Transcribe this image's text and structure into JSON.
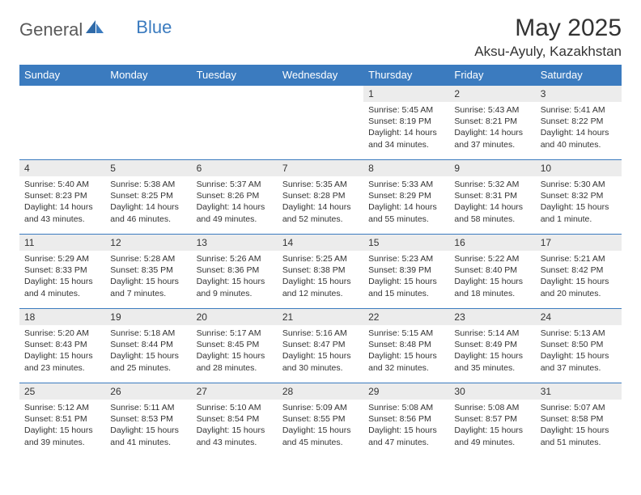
{
  "brand": {
    "general": "General",
    "blue": "Blue"
  },
  "header": {
    "month_title": "May 2025",
    "location": "Aksu-Ayuly, Kazakhstan"
  },
  "colors": {
    "accent": "#3b7bbf",
    "daynum_bg": "#ececec",
    "text": "#333333",
    "background": "#ffffff"
  },
  "daynames": [
    "Sunday",
    "Monday",
    "Tuesday",
    "Wednesday",
    "Thursday",
    "Friday",
    "Saturday"
  ],
  "weeks": [
    [
      null,
      null,
      null,
      null,
      {
        "n": "1",
        "sr": "Sunrise: 5:45 AM",
        "ss": "Sunset: 8:19 PM",
        "d1": "Daylight: 14 hours",
        "d2": "and 34 minutes."
      },
      {
        "n": "2",
        "sr": "Sunrise: 5:43 AM",
        "ss": "Sunset: 8:21 PM",
        "d1": "Daylight: 14 hours",
        "d2": "and 37 minutes."
      },
      {
        "n": "3",
        "sr": "Sunrise: 5:41 AM",
        "ss": "Sunset: 8:22 PM",
        "d1": "Daylight: 14 hours",
        "d2": "and 40 minutes."
      }
    ],
    [
      {
        "n": "4",
        "sr": "Sunrise: 5:40 AM",
        "ss": "Sunset: 8:23 PM",
        "d1": "Daylight: 14 hours",
        "d2": "and 43 minutes."
      },
      {
        "n": "5",
        "sr": "Sunrise: 5:38 AM",
        "ss": "Sunset: 8:25 PM",
        "d1": "Daylight: 14 hours",
        "d2": "and 46 minutes."
      },
      {
        "n": "6",
        "sr": "Sunrise: 5:37 AM",
        "ss": "Sunset: 8:26 PM",
        "d1": "Daylight: 14 hours",
        "d2": "and 49 minutes."
      },
      {
        "n": "7",
        "sr": "Sunrise: 5:35 AM",
        "ss": "Sunset: 8:28 PM",
        "d1": "Daylight: 14 hours",
        "d2": "and 52 minutes."
      },
      {
        "n": "8",
        "sr": "Sunrise: 5:33 AM",
        "ss": "Sunset: 8:29 PM",
        "d1": "Daylight: 14 hours",
        "d2": "and 55 minutes."
      },
      {
        "n": "9",
        "sr": "Sunrise: 5:32 AM",
        "ss": "Sunset: 8:31 PM",
        "d1": "Daylight: 14 hours",
        "d2": "and 58 minutes."
      },
      {
        "n": "10",
        "sr": "Sunrise: 5:30 AM",
        "ss": "Sunset: 8:32 PM",
        "d1": "Daylight: 15 hours",
        "d2": "and 1 minute."
      }
    ],
    [
      {
        "n": "11",
        "sr": "Sunrise: 5:29 AM",
        "ss": "Sunset: 8:33 PM",
        "d1": "Daylight: 15 hours",
        "d2": "and 4 minutes."
      },
      {
        "n": "12",
        "sr": "Sunrise: 5:28 AM",
        "ss": "Sunset: 8:35 PM",
        "d1": "Daylight: 15 hours",
        "d2": "and 7 minutes."
      },
      {
        "n": "13",
        "sr": "Sunrise: 5:26 AM",
        "ss": "Sunset: 8:36 PM",
        "d1": "Daylight: 15 hours",
        "d2": "and 9 minutes."
      },
      {
        "n": "14",
        "sr": "Sunrise: 5:25 AM",
        "ss": "Sunset: 8:38 PM",
        "d1": "Daylight: 15 hours",
        "d2": "and 12 minutes."
      },
      {
        "n": "15",
        "sr": "Sunrise: 5:23 AM",
        "ss": "Sunset: 8:39 PM",
        "d1": "Daylight: 15 hours",
        "d2": "and 15 minutes."
      },
      {
        "n": "16",
        "sr": "Sunrise: 5:22 AM",
        "ss": "Sunset: 8:40 PM",
        "d1": "Daylight: 15 hours",
        "d2": "and 18 minutes."
      },
      {
        "n": "17",
        "sr": "Sunrise: 5:21 AM",
        "ss": "Sunset: 8:42 PM",
        "d1": "Daylight: 15 hours",
        "d2": "and 20 minutes."
      }
    ],
    [
      {
        "n": "18",
        "sr": "Sunrise: 5:20 AM",
        "ss": "Sunset: 8:43 PM",
        "d1": "Daylight: 15 hours",
        "d2": "and 23 minutes."
      },
      {
        "n": "19",
        "sr": "Sunrise: 5:18 AM",
        "ss": "Sunset: 8:44 PM",
        "d1": "Daylight: 15 hours",
        "d2": "and 25 minutes."
      },
      {
        "n": "20",
        "sr": "Sunrise: 5:17 AM",
        "ss": "Sunset: 8:45 PM",
        "d1": "Daylight: 15 hours",
        "d2": "and 28 minutes."
      },
      {
        "n": "21",
        "sr": "Sunrise: 5:16 AM",
        "ss": "Sunset: 8:47 PM",
        "d1": "Daylight: 15 hours",
        "d2": "and 30 minutes."
      },
      {
        "n": "22",
        "sr": "Sunrise: 5:15 AM",
        "ss": "Sunset: 8:48 PM",
        "d1": "Daylight: 15 hours",
        "d2": "and 32 minutes."
      },
      {
        "n": "23",
        "sr": "Sunrise: 5:14 AM",
        "ss": "Sunset: 8:49 PM",
        "d1": "Daylight: 15 hours",
        "d2": "and 35 minutes."
      },
      {
        "n": "24",
        "sr": "Sunrise: 5:13 AM",
        "ss": "Sunset: 8:50 PM",
        "d1": "Daylight: 15 hours",
        "d2": "and 37 minutes."
      }
    ],
    [
      {
        "n": "25",
        "sr": "Sunrise: 5:12 AM",
        "ss": "Sunset: 8:51 PM",
        "d1": "Daylight: 15 hours",
        "d2": "and 39 minutes."
      },
      {
        "n": "26",
        "sr": "Sunrise: 5:11 AM",
        "ss": "Sunset: 8:53 PM",
        "d1": "Daylight: 15 hours",
        "d2": "and 41 minutes."
      },
      {
        "n": "27",
        "sr": "Sunrise: 5:10 AM",
        "ss": "Sunset: 8:54 PM",
        "d1": "Daylight: 15 hours",
        "d2": "and 43 minutes."
      },
      {
        "n": "28",
        "sr": "Sunrise: 5:09 AM",
        "ss": "Sunset: 8:55 PM",
        "d1": "Daylight: 15 hours",
        "d2": "and 45 minutes."
      },
      {
        "n": "29",
        "sr": "Sunrise: 5:08 AM",
        "ss": "Sunset: 8:56 PM",
        "d1": "Daylight: 15 hours",
        "d2": "and 47 minutes."
      },
      {
        "n": "30",
        "sr": "Sunrise: 5:08 AM",
        "ss": "Sunset: 8:57 PM",
        "d1": "Daylight: 15 hours",
        "d2": "and 49 minutes."
      },
      {
        "n": "31",
        "sr": "Sunrise: 5:07 AM",
        "ss": "Sunset: 8:58 PM",
        "d1": "Daylight: 15 hours",
        "d2": "and 51 minutes."
      }
    ]
  ]
}
